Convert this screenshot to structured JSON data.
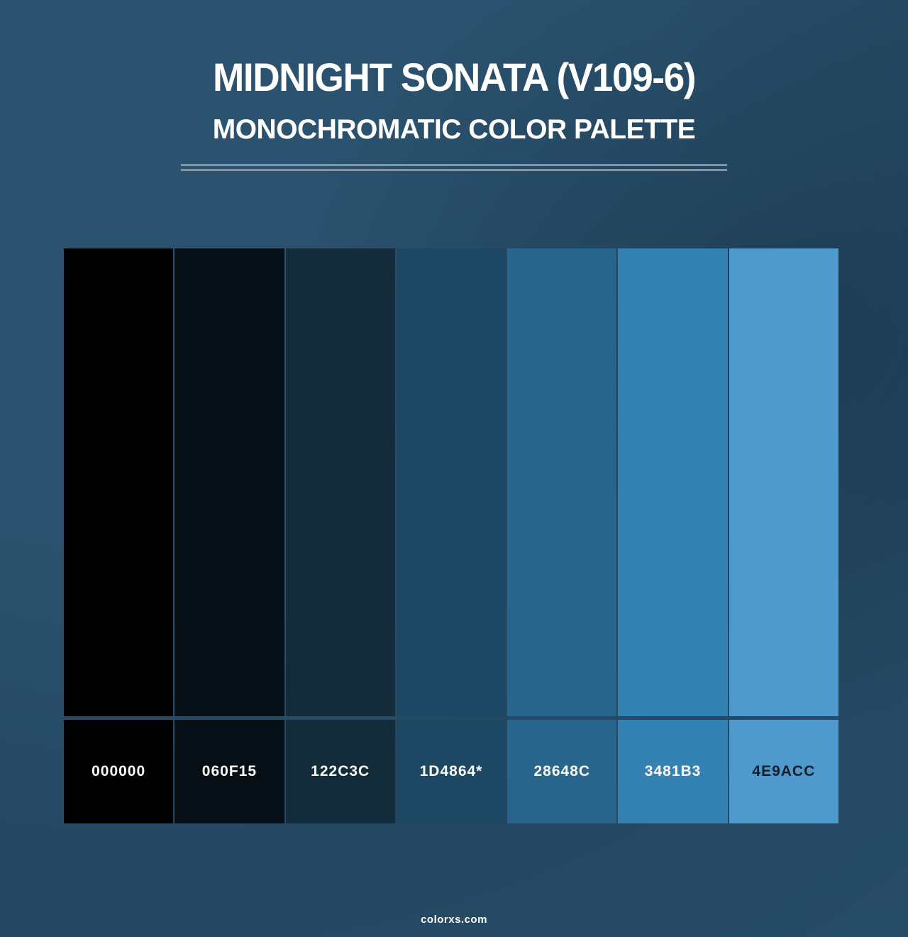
{
  "header": {
    "title": "MIDNIGHT SONATA (V109-6)",
    "subtitle": "MONOCHROMATIC COLOR PALETTE"
  },
  "palette": {
    "swatches": [
      {
        "hex_label": "000000",
        "color": "#000000",
        "label_color": "#ffffff"
      },
      {
        "hex_label": "060F15",
        "color": "#060F15",
        "label_color": "#ffffff"
      },
      {
        "hex_label": "122C3C",
        "color": "#122C3C",
        "label_color": "#ffffff"
      },
      {
        "hex_label": "1D4864*",
        "color": "#1D4864",
        "label_color": "#ffffff"
      },
      {
        "hex_label": "28648C",
        "color": "#28648C",
        "label_color": "#ffffff"
      },
      {
        "hex_label": "3481B3",
        "color": "#3481B3",
        "label_color": "#ffffff"
      },
      {
        "hex_label": "4E9ACC",
        "color": "#4E9ACC",
        "label_color": "#0e1d2a"
      }
    ]
  },
  "footer": {
    "watermark": "colorxs.com"
  },
  "theme": {
    "background_base": "#2b5370",
    "background_dark": "#274c67",
    "divider_color": "#8fa3b2",
    "title_color": "#ffffff"
  }
}
